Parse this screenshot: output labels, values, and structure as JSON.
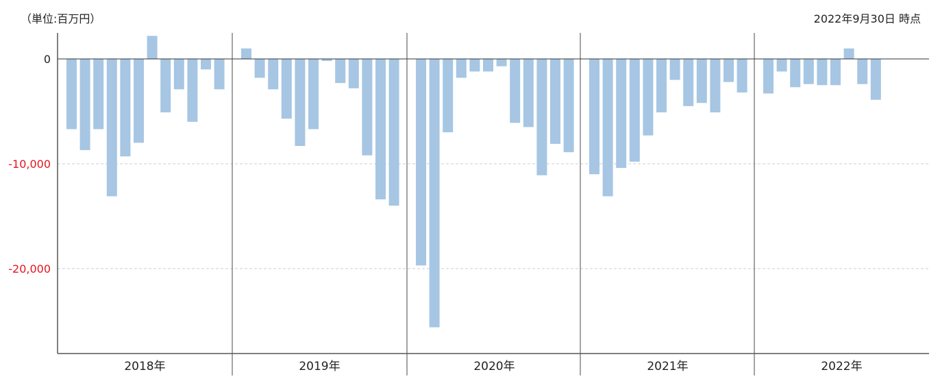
{
  "header": {
    "unit": "（単位:百万円）",
    "as_of": "2022年9月30日 時点"
  },
  "colors": {
    "bar": "#a6c6e3",
    "negative_tick": "#e8141c",
    "zero_tick": "#222222",
    "axis": "#555555",
    "grid": "#cccccc"
  },
  "chart_data": {
    "type": "bar",
    "title": "",
    "xlabel": "",
    "ylabel": "",
    "ylim": [
      -28000,
      2500
    ],
    "yticks": [
      {
        "value": 0,
        "label": "0"
      },
      {
        "value": -10000,
        "label": "-10,000"
      },
      {
        "value": -20000,
        "label": "-20,000"
      }
    ],
    "grid": "horizontal dashed at -10,000 and -20,000",
    "groups": [
      {
        "label": "2018年",
        "values": [
          -6700,
          -8700,
          -6700,
          -13100,
          -9300,
          -8000,
          2200,
          -5100,
          -2900,
          -6000,
          -1000,
          -2900
        ]
      },
      {
        "label": "2019年",
        "values": [
          1000,
          -1800,
          -2900,
          -5700,
          -8300,
          -6700,
          -200,
          -2300,
          -2800,
          -9200,
          -13400,
          -14000
        ]
      },
      {
        "label": "2020年",
        "values": [
          -19700,
          -25600,
          -7000,
          -1800,
          -1200,
          -1200,
          -700,
          -6100,
          -6500,
          -11100,
          -8100,
          -8900
        ]
      },
      {
        "label": "2021年",
        "values": [
          -11000,
          -13100,
          -10400,
          -9800,
          -7300,
          -5100,
          -2000,
          -4500,
          -4200,
          -5100,
          -2200,
          -3200
        ]
      },
      {
        "label": "2022年",
        "values": [
          -3300,
          -1200,
          -2700,
          -2400,
          -2500,
          -2500,
          1000,
          -2400,
          -3900
        ]
      }
    ]
  }
}
